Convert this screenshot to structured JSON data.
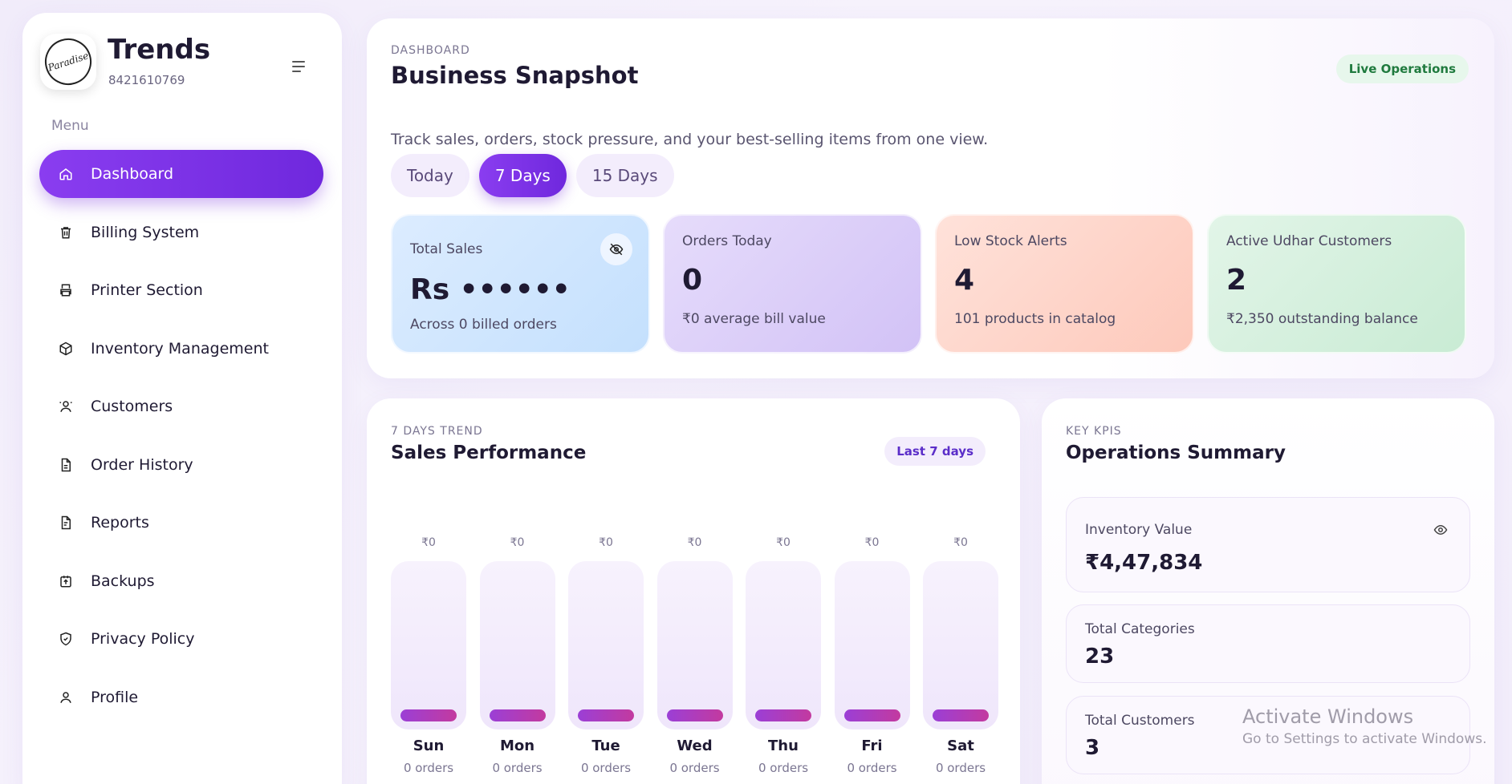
{
  "brand": {
    "name": "Trends",
    "phone": "8421610769",
    "logo_text": "Paradise Cafe"
  },
  "sidebar": {
    "menu_heading": "Menu",
    "items": [
      {
        "label": "Dashboard",
        "icon": "home-icon",
        "active": true
      },
      {
        "label": "Billing System",
        "icon": "trash-bin-icon"
      },
      {
        "label": "Printer Section",
        "icon": "printer-icon"
      },
      {
        "label": "Inventory Management",
        "icon": "box-icon"
      },
      {
        "label": "Customers",
        "icon": "customer-icon"
      },
      {
        "label": "Order History",
        "icon": "document-icon"
      },
      {
        "label": "Reports",
        "icon": "report-icon"
      },
      {
        "label": "Backups",
        "icon": "backup-icon"
      },
      {
        "label": "Privacy Policy",
        "icon": "shield-icon"
      },
      {
        "label": "Profile",
        "icon": "user-icon"
      }
    ]
  },
  "snapshot": {
    "eyebrow": "DASHBOARD",
    "title": "Business Snapshot",
    "badge": "Live Operations",
    "subtitle": "Track sales, orders, stock pressure, and your best-selling items from one view.",
    "ranges": [
      {
        "label": "Today",
        "active": false
      },
      {
        "label": "7 Days",
        "active": true
      },
      {
        "label": "15 Days",
        "active": false
      }
    ],
    "stats": [
      {
        "label": "Total Sales",
        "value": "Rs ••••••",
        "sub": "Across 0 billed orders",
        "color": "#cfe5fe"
      },
      {
        "label": "Orders Today",
        "value": "0",
        "sub": "₹0 average bill value",
        "color": "#dccdf8"
      },
      {
        "label": "Low Stock Alerts",
        "value": "4",
        "sub": "101 products in catalog",
        "color": "#fed3c6"
      },
      {
        "label": "Active Udhar Customers",
        "value": "2",
        "sub": "₹2,350 outstanding balance",
        "color": "#d3efdc"
      }
    ]
  },
  "sales": {
    "eyebrow": "7 DAYS TREND",
    "title": "Sales Performance",
    "badge": "Last 7 days",
    "days": [
      {
        "day": "Sun",
        "value": "₹0",
        "orders": "0 orders"
      },
      {
        "day": "Mon",
        "value": "₹0",
        "orders": "0 orders"
      },
      {
        "day": "Tue",
        "value": "₹0",
        "orders": "0 orders"
      },
      {
        "day": "Wed",
        "value": "₹0",
        "orders": "0 orders"
      },
      {
        "day": "Thu",
        "value": "₹0",
        "orders": "0 orders"
      },
      {
        "day": "Fri",
        "value": "₹0",
        "orders": "0 orders"
      },
      {
        "day": "Sat",
        "value": "₹0",
        "orders": "0 orders"
      }
    ]
  },
  "chart_data": {
    "type": "bar",
    "categories": [
      "Sun",
      "Mon",
      "Tue",
      "Wed",
      "Thu",
      "Fri",
      "Sat"
    ],
    "values": [
      0,
      0,
      0,
      0,
      0,
      0,
      0
    ],
    "title": "Sales Performance",
    "xlabel": "",
    "ylabel": ""
  },
  "ops": {
    "eyebrow": "KEY KPIS",
    "title": "Operations Summary",
    "kpis": [
      {
        "label": "Inventory Value",
        "value": "₹4,47,834"
      },
      {
        "label": "Total Categories",
        "value": "23"
      },
      {
        "label": "Total Customers",
        "value": "3"
      }
    ]
  },
  "watermark": {
    "title": "Activate Windows",
    "sub": "Go to Settings to activate Windows."
  },
  "colors": {
    "accent": "#7a30e6",
    "live": "#1f7a3e",
    "bar": "#b23cbb"
  }
}
